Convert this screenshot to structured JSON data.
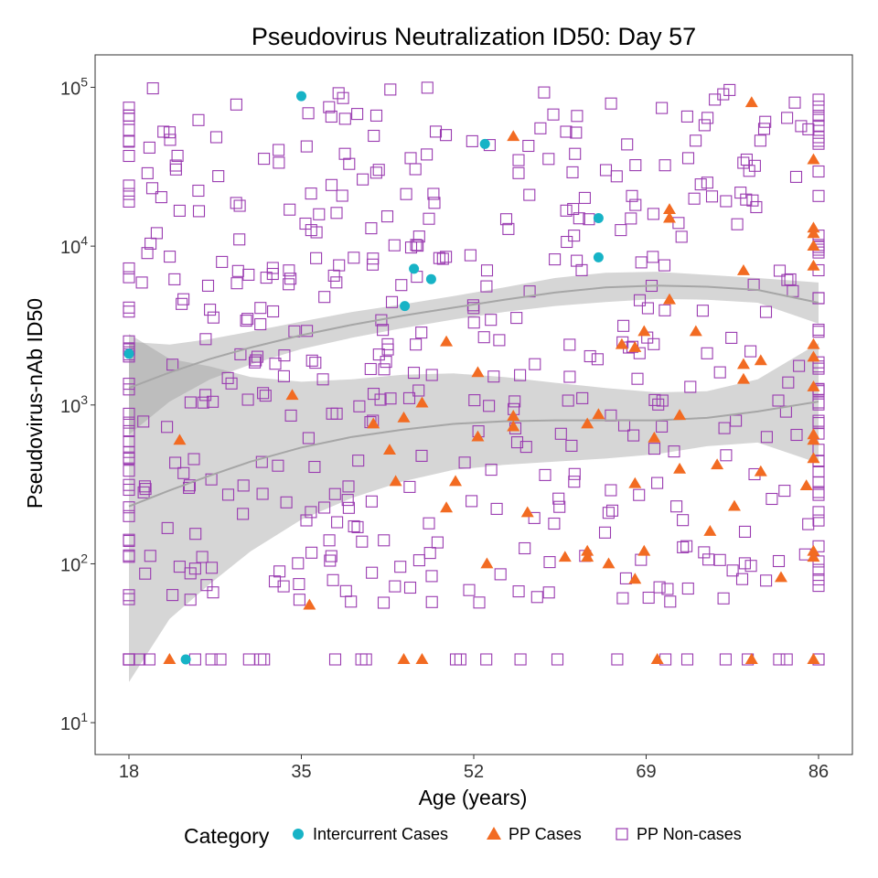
{
  "chart_data": {
    "type": "scatter",
    "title": "Pseudovirus Neutralization ID50: Day 57",
    "xlabel": "Age (years)",
    "ylabel": "Pseudovirus-nAb ID50",
    "x_ticks": [
      "18",
      "35",
      "52",
      "69",
      "86"
    ],
    "x_tick_values": [
      18,
      35,
      52,
      69,
      86
    ],
    "xlim": [
      18,
      86
    ],
    "y_scale": "log10",
    "ylim": [
      6.3,
      160000
    ],
    "y_tick_values": [
      10,
      100,
      1000,
      10000,
      100000
    ],
    "y_ticks": [
      {
        "base": "10",
        "exp": "1"
      },
      {
        "base": "10",
        "exp": "2"
      },
      {
        "base": "10",
        "exp": "3"
      },
      {
        "base": "10",
        "exp": "4"
      },
      {
        "base": "10",
        "exp": "5"
      }
    ],
    "legend": {
      "title": "Category",
      "position": "bottom",
      "items": [
        {
          "label": "Intercurrent Cases",
          "shape": "circle",
          "color": "#17b3c6"
        },
        {
          "label": "PP Cases",
          "shape": "triangle",
          "color": "#f26b22"
        },
        {
          "label": "PP Non-cases",
          "shape": "open-square",
          "color": "#9a3bb0"
        }
      ]
    },
    "grid": false,
    "series": [
      {
        "name": "Intercurrent Cases",
        "points": [
          [
            18,
            2100
          ],
          [
            23.6,
            25
          ],
          [
            35,
            88000
          ],
          [
            45.2,
            4200
          ],
          [
            46.1,
            7200
          ],
          [
            47.8,
            6200
          ],
          [
            53.1,
            44000
          ],
          [
            64.3,
            15000
          ],
          [
            64.3,
            8500
          ]
        ]
      },
      {
        "name": "PP Cases",
        "points": [
          [
            22,
            25
          ],
          [
            23,
            600
          ],
          [
            34.1,
            1150
          ],
          [
            35.8,
            55
          ],
          [
            42.1,
            760
          ],
          [
            43.7,
            520
          ],
          [
            44.3,
            330
          ],
          [
            45.1,
            830
          ],
          [
            45.1,
            25
          ],
          [
            46.9,
            25
          ],
          [
            46.9,
            1030
          ],
          [
            49.3,
            2500
          ],
          [
            49.3,
            225
          ],
          [
            50.2,
            330
          ],
          [
            52.4,
            1600
          ],
          [
            52.4,
            630
          ],
          [
            53.3,
            100
          ],
          [
            55.9,
            49000
          ],
          [
            55.9,
            850
          ],
          [
            55.9,
            730
          ],
          [
            57.3,
            210
          ],
          [
            61,
            110
          ],
          [
            63.2,
            120
          ],
          [
            63.2,
            110
          ],
          [
            63.2,
            760
          ],
          [
            64.3,
            870
          ],
          [
            65.3,
            100
          ],
          [
            66.6,
            2400
          ],
          [
            67.9,
            2300
          ],
          [
            67.9,
            320
          ],
          [
            67.9,
            80
          ],
          [
            68.8,
            2900
          ],
          [
            68.8,
            120
          ],
          [
            69.8,
            620
          ],
          [
            70.1,
            25
          ],
          [
            71.3,
            17000
          ],
          [
            71.3,
            15000
          ],
          [
            71.3,
            4600
          ],
          [
            72.3,
            395
          ],
          [
            72.3,
            860
          ],
          [
            73.9,
            2900
          ],
          [
            75.3,
            160
          ],
          [
            76,
            420
          ],
          [
            77.7,
            230
          ],
          [
            78.6,
            7000
          ],
          [
            78.6,
            1800
          ],
          [
            78.6,
            1450
          ],
          [
            79.4,
            80000
          ],
          [
            79.4,
            25
          ],
          [
            80.3,
            380
          ],
          [
            80.3,
            1900
          ],
          [
            82.3,
            82
          ],
          [
            84.8,
            310
          ],
          [
            85.5,
            35000
          ],
          [
            85.5,
            13000
          ],
          [
            85.5,
            12000
          ],
          [
            85.5,
            10000
          ],
          [
            85.5,
            7500
          ],
          [
            85.5,
            2400
          ],
          [
            85.5,
            2000
          ],
          [
            85.5,
            1300
          ],
          [
            85.5,
            650
          ],
          [
            85.5,
            600
          ],
          [
            85.5,
            460
          ],
          [
            85.5,
            120
          ],
          [
            85.5,
            110
          ],
          [
            85.5,
            25
          ]
        ]
      },
      {
        "name": "PP Non-cases",
        "count": 540,
        "seed": 2281
      }
    ],
    "smooth_lines": [
      {
        "name": "upper-trend",
        "color": "#a6a6a6",
        "points": [
          [
            18,
            1280
          ],
          [
            22,
            1600
          ],
          [
            26,
            1950
          ],
          [
            30,
            2300
          ],
          [
            35,
            2750
          ],
          [
            40,
            3200
          ],
          [
            45,
            3650
          ],
          [
            50,
            4100
          ],
          [
            55,
            4600
          ],
          [
            60,
            5100
          ],
          [
            65,
            5500
          ],
          [
            70,
            5650
          ],
          [
            75,
            5550
          ],
          [
            80,
            5300
          ],
          [
            86,
            4400
          ]
        ],
        "band_upper": [
          [
            18,
            2500
          ],
          [
            22,
            2400
          ],
          [
            26,
            2600
          ],
          [
            30,
            2900
          ],
          [
            35,
            3350
          ],
          [
            40,
            3850
          ],
          [
            45,
            4300
          ],
          [
            50,
            4850
          ],
          [
            55,
            5500
          ],
          [
            60,
            6300
          ],
          [
            65,
            6800
          ],
          [
            70,
            6900
          ],
          [
            75,
            6600
          ],
          [
            80,
            6300
          ],
          [
            86,
            5900
          ]
        ],
        "band_lower": [
          [
            18,
            650
          ],
          [
            22,
            1050
          ],
          [
            26,
            1450
          ],
          [
            30,
            1800
          ],
          [
            35,
            2250
          ],
          [
            40,
            2650
          ],
          [
            45,
            3050
          ],
          [
            50,
            3450
          ],
          [
            55,
            3850
          ],
          [
            60,
            4200
          ],
          [
            65,
            4450
          ],
          [
            70,
            4650
          ],
          [
            75,
            4600
          ],
          [
            80,
            4400
          ],
          [
            86,
            3250
          ]
        ]
      },
      {
        "name": "lower-trend",
        "color": "#a6a6a6",
        "points": [
          [
            18,
            230
          ],
          [
            22,
            290
          ],
          [
            26,
            360
          ],
          [
            30,
            440
          ],
          [
            35,
            540
          ],
          [
            40,
            630
          ],
          [
            45,
            700
          ],
          [
            50,
            760
          ],
          [
            55,
            790
          ],
          [
            60,
            800
          ],
          [
            65,
            800
          ],
          [
            70,
            800
          ],
          [
            75,
            830
          ],
          [
            80,
            910
          ],
          [
            86,
            1050
          ]
        ],
        "band_upper": [
          [
            18,
            2800
          ],
          [
            22,
            1950
          ],
          [
            26,
            1750
          ],
          [
            30,
            1500
          ],
          [
            35,
            1400
          ],
          [
            40,
            1450
          ],
          [
            45,
            1550
          ],
          [
            50,
            1580
          ],
          [
            55,
            1500
          ],
          [
            60,
            1380
          ],
          [
            65,
            1280
          ],
          [
            70,
            1200
          ],
          [
            75,
            1220
          ],
          [
            80,
            1450
          ],
          [
            86,
            2450
          ]
        ],
        "band_lower": [
          [
            18,
            18
          ],
          [
            22,
            45
          ],
          [
            26,
            75
          ],
          [
            30,
            120
          ],
          [
            35,
            190
          ],
          [
            40,
            260
          ],
          [
            45,
            330
          ],
          [
            50,
            390
          ],
          [
            55,
            420
          ],
          [
            60,
            440
          ],
          [
            65,
            460
          ],
          [
            70,
            490
          ],
          [
            75,
            550
          ],
          [
            80,
            580
          ],
          [
            86,
            430
          ]
        ]
      }
    ]
  }
}
